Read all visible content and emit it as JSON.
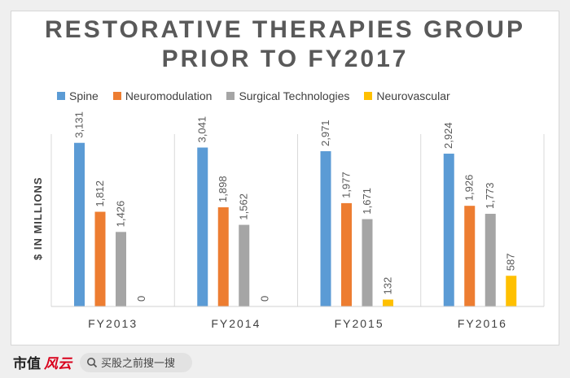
{
  "title": {
    "line1": "RESTORATIVE THERAPIES GROUP",
    "line2": "PRIOR TO FY2017"
  },
  "chart_data": {
    "type": "bar",
    "title": "RESTORATIVE THERAPIES GROUP PRIOR TO FY2017",
    "xlabel": "",
    "ylabel": "$ IN MILLIONS",
    "ylim": [
      0,
      3500
    ],
    "grid": false,
    "legend": "top",
    "categories": [
      "FY2013",
      "FY2014",
      "FY2015",
      "FY2016"
    ],
    "series": [
      {
        "name": "Spine",
        "color": "#5b9bd5",
        "values": [
          3131,
          3041,
          2971,
          2924
        ],
        "labels": [
          "3,131",
          "3,041",
          "2,971",
          "2,924"
        ]
      },
      {
        "name": "Neuromodulation",
        "color": "#ed7d31",
        "values": [
          1812,
          1898,
          1977,
          1926
        ],
        "labels": [
          "1,812",
          "1,898",
          "1,977",
          "1,926"
        ]
      },
      {
        "name": "Surgical Technologies",
        "color": "#a5a5a5",
        "values": [
          1426,
          1562,
          1671,
          1773
        ],
        "labels": [
          "1,426",
          "1,562",
          "1,671",
          "1,773"
        ]
      },
      {
        "name": "Neurovascular",
        "color": "#ffc000",
        "values": [
          0,
          0,
          132,
          587
        ],
        "labels": [
          "0",
          "0",
          "132",
          "587"
        ]
      }
    ]
  },
  "footer": {
    "brand_main": "市值",
    "brand_accent": "风云",
    "search_placeholder": "买股之前搜一搜",
    "search_icon": "search-icon"
  }
}
